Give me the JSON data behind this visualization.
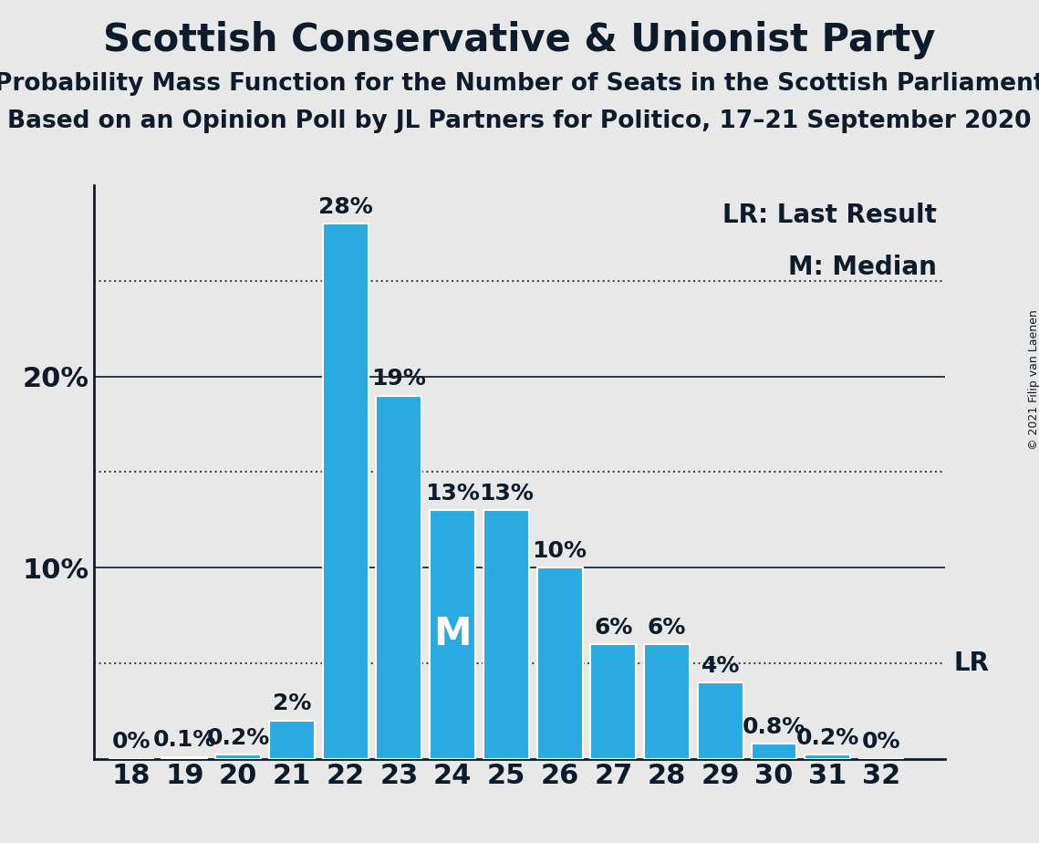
{
  "title": "Scottish Conservative & Unionist Party",
  "subtitle1": "Probability Mass Function for the Number of Seats in the Scottish Parliament",
  "subtitle2": "Based on an Opinion Poll by JL Partners for Politico, 17–21 September 2020",
  "copyright": "© 2021 Filip van Laenen",
  "seats": [
    18,
    19,
    20,
    21,
    22,
    23,
    24,
    25,
    26,
    27,
    28,
    29,
    30,
    31,
    32
  ],
  "probabilities": [
    0.0,
    0.1,
    0.2,
    2.0,
    28.0,
    19.0,
    13.0,
    13.0,
    10.0,
    6.0,
    6.0,
    4.0,
    0.8,
    0.2,
    0.0
  ],
  "labels": [
    "0%",
    "0.1%",
    "0.2%",
    "2%",
    "28%",
    "19%",
    "13%",
    "13%",
    "10%",
    "6%",
    "6%",
    "4%",
    "0.8%",
    "0.2%",
    "0%"
  ],
  "bar_color": "#29ABE2",
  "bar_edge_color": "white",
  "background_color": "#E8E8E8",
  "text_color": "#0D1B2A",
  "median_seat": 24,
  "median_label": "M",
  "lr_value": 5.0,
  "lr_label": "LR",
  "yticks": [
    10,
    20
  ],
  "ytick_labels": [
    "10%",
    "20%"
  ],
  "solid_grid_lines": [
    10,
    20
  ],
  "dotted_lines": [
    5,
    15,
    25
  ],
  "ylim": [
    0,
    30
  ],
  "title_fontsize": 30,
  "subtitle_fontsize": 19,
  "axis_tick_fontsize": 22,
  "bar_label_fontsize": 18,
  "legend_fontsize": 20,
  "median_fontsize": 30,
  "copyright_fontsize": 9
}
